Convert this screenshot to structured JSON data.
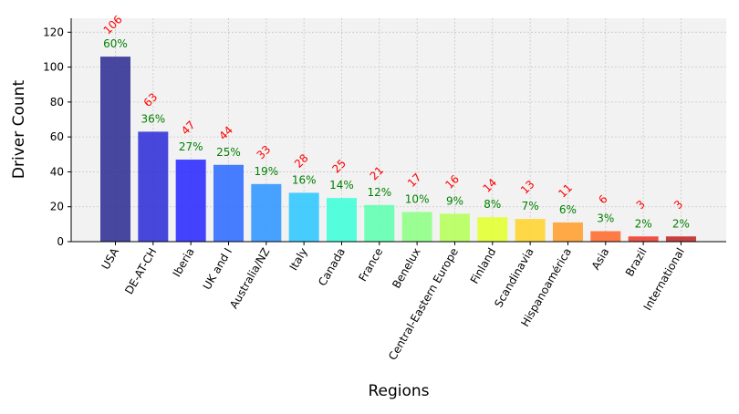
{
  "chart_data": {
    "type": "bar",
    "title": "",
    "xlabel": "Regions",
    "ylabel": "Driver Count",
    "categories": [
      "USA",
      "DE-AT-CH",
      "Iberia",
      "UK and I",
      "Australia/NZ",
      "Italy",
      "Canada",
      "France",
      "Benelux",
      "Central-Eastern Europe",
      "Finland",
      "Scandinavia",
      "Hispanoamérica",
      "Asia",
      "Brazil",
      "International"
    ],
    "values": [
      106,
      63,
      47,
      44,
      33,
      28,
      25,
      21,
      17,
      16,
      14,
      13,
      11,
      6,
      3,
      3
    ],
    "count_labels": [
      "106",
      "63",
      "47",
      "44",
      "33",
      "28",
      "25",
      "21",
      "17",
      "16",
      "14",
      "13",
      "11",
      "6",
      "3",
      "3"
    ],
    "percent_labels": [
      "60%",
      "36%",
      "27%",
      "25%",
      "19%",
      "16%",
      "14%",
      "12%",
      "10%",
      "9%",
      "8%",
      "7%",
      "6%",
      "3%",
      "2%",
      "2%"
    ],
    "bar_colors": [
      "#2f2f94",
      "#2f2fd8",
      "#2a2aff",
      "#2d6bff",
      "#2f95ff",
      "#2ec7ff",
      "#3effd9",
      "#5effb1",
      "#8eff85",
      "#b4ff58",
      "#e2ff2d",
      "#ffd42d",
      "#ff9e2d",
      "#ff6a2d",
      "#ee3a2a",
      "#c22525"
    ],
    "count_label_color": "#ff0000",
    "percent_label_color": "#008000",
    "plot_background": "#f2f2f2",
    "grid": true,
    "ylim": [
      0,
      128
    ],
    "yticks": [
      0,
      20,
      40,
      60,
      80,
      100,
      120
    ]
  }
}
